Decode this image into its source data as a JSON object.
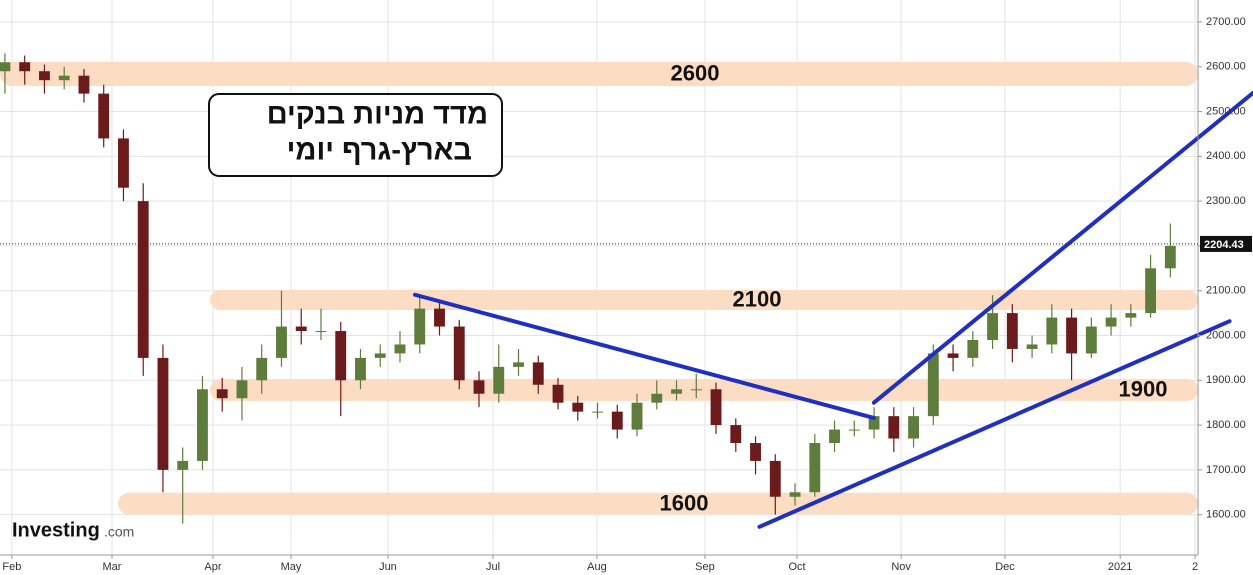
{
  "chart_data": {
    "type": "candlestick",
    "title": [
      "מדד מניות בנקים",
      "בארץ-גרף יומי"
    ],
    "logo": {
      "text": "Investing",
      "suffix": ".com"
    },
    "x": [
      0,
      1,
      2,
      3,
      4,
      5,
      6,
      7,
      8,
      9,
      10,
      11,
      12,
      13,
      14,
      15,
      16,
      17,
      18,
      19,
      20,
      21,
      22,
      23,
      24,
      25,
      26,
      27,
      28,
      29,
      30,
      31,
      32,
      33,
      34,
      35,
      36,
      37,
      38,
      39,
      40,
      41,
      42,
      43,
      44,
      45,
      46,
      47,
      48,
      49,
      50,
      51,
      52,
      53,
      54,
      55,
      56,
      57,
      58,
      59
    ],
    "open": [
      2590,
      2610,
      2590,
      2570,
      2580,
      2540,
      2440,
      2300,
      1950,
      1700,
      1720,
      1880,
      1860,
      1900,
      1950,
      2020,
      2010,
      2010,
      1900,
      1950,
      1960,
      1980,
      2060,
      2020,
      1900,
      1870,
      1930,
      1940,
      1890,
      1850,
      1830,
      1830,
      1790,
      1850,
      1870,
      1880,
      1880,
      1800,
      1760,
      1720,
      1640,
      1650,
      1760,
      1790,
      1790,
      1820,
      1770,
      1820,
      1960,
      1950,
      1990,
      2050,
      1970,
      1980,
      2040,
      1960,
      2020,
      2040,
      2050,
      2150
    ],
    "high": [
      2630,
      2625,
      2605,
      2600,
      2595,
      2560,
      2460,
      2340,
      1980,
      1750,
      1910,
      1905,
      1930,
      1980,
      2100,
      2060,
      2060,
      2030,
      1970,
      1980,
      2010,
      2090,
      2080,
      2035,
      1920,
      1980,
      1970,
      1955,
      1905,
      1865,
      1850,
      1845,
      1870,
      1900,
      1900,
      1915,
      1895,
      1815,
      1775,
      1735,
      1670,
      1780,
      1810,
      1810,
      1840,
      1840,
      1840,
      1980,
      1980,
      2010,
      2090,
      2070,
      2000,
      2070,
      2060,
      2040,
      2070,
      2070,
      2180,
      2250
    ],
    "low": [
      2540,
      2560,
      2540,
      2550,
      2520,
      2420,
      2300,
      1910,
      1650,
      1580,
      1700,
      1830,
      1810,
      1870,
      1930,
      1980,
      1990,
      1820,
      1880,
      1930,
      1940,
      1960,
      2000,
      1880,
      1840,
      1850,
      1910,
      1870,
      1835,
      1810,
      1815,
      1770,
      1775,
      1835,
      1855,
      1860,
      1780,
      1740,
      1690,
      1600,
      1620,
      1640,
      1740,
      1775,
      1770,
      1740,
      1750,
      1800,
      1920,
      1930,
      1970,
      1940,
      1950,
      1960,
      1900,
      1950,
      2000,
      2020,
      2040,
      2130
    ],
    "close": [
      2610,
      2590,
      2570,
      2580,
      2540,
      2440,
      2330,
      1950,
      1700,
      1720,
      1880,
      1860,
      1900,
      1950,
      2020,
      2010,
      2010,
      1900,
      1950,
      1960,
      1980,
      2060,
      2020,
      1900,
      1870,
      1930,
      1940,
      1890,
      1850,
      1830,
      1830,
      1790,
      1850,
      1870,
      1880,
      1880,
      1800,
      1760,
      1720,
      1640,
      1650,
      1760,
      1790,
      1790,
      1820,
      1770,
      1820,
      1960,
      1950,
      1990,
      2050,
      1970,
      1980,
      2040,
      1960,
      2020,
      2040,
      2050,
      2150,
      2200
    ],
    "up_color": "#5e7d3c",
    "down_color": "#6b1b1b",
    "xlim": [
      -0.25,
      60.4
    ],
    "xticks": [
      {
        "value": 0.35,
        "label": "Feb"
      },
      {
        "value": 5.42,
        "label": "Mar"
      },
      {
        "value": 10.53,
        "label": "Apr"
      },
      {
        "value": 14.48,
        "label": "May"
      },
      {
        "value": 19.39,
        "label": "Jun"
      },
      {
        "value": 24.71,
        "label": "Jul"
      },
      {
        "value": 29.97,
        "label": "Aug"
      },
      {
        "value": 35.44,
        "label": "Sep"
      },
      {
        "value": 40.1,
        "label": "Oct"
      },
      {
        "value": 45.37,
        "label": "Nov"
      },
      {
        "value": 50.63,
        "label": "Dec"
      },
      {
        "value": 56.46,
        "label": "2021"
      },
      {
        "value": 60.25,
        "label": "2"
      }
    ],
    "ylim": [
      1510,
      2749
    ],
    "yticks": [
      {
        "value": 1600,
        "label": "1600.00"
      },
      {
        "value": 1700,
        "label": "1700.00"
      },
      {
        "value": 1800,
        "label": "1800.00"
      },
      {
        "value": 1900,
        "label": "1900.00"
      },
      {
        "value": 2000,
        "label": "2000.00"
      },
      {
        "value": 2100,
        "label": "2100.00"
      },
      {
        "value": 2200,
        "label": "2200.00"
      },
      {
        "value": 2300,
        "label": "2300.00"
      },
      {
        "value": 2400,
        "label": "2400.00"
      },
      {
        "value": 2500,
        "label": "2500.00"
      },
      {
        "value": 2600,
        "label": "2600.00"
      },
      {
        "value": 2700,
        "label": "2700.00"
      }
    ],
    "grid": true,
    "last_price": 2204.43,
    "bands": [
      {
        "label": 2600,
        "low": 2557,
        "high": 2611
      },
      {
        "label": 2100,
        "low": 2057,
        "high": 2102
      },
      {
        "label": 1900,
        "low": 1854,
        "high": 1903
      },
      {
        "label": 1600,
        "low": 1600,
        "high": 1649
      }
    ],
    "band_color": "#fddcc4",
    "trend_color": "#1f2fbf",
    "trend_lines": [
      {
        "x": [
          20.76,
          43.99
        ],
        "y": [
          2091,
          1816
        ]
      },
      {
        "x": [
          43.99,
          63.2
        ],
        "y": [
          1850,
          2542
        ]
      },
      {
        "x": [
          38.2,
          62.0
        ],
        "y": [
          1573,
          2032
        ]
      }
    ]
  }
}
